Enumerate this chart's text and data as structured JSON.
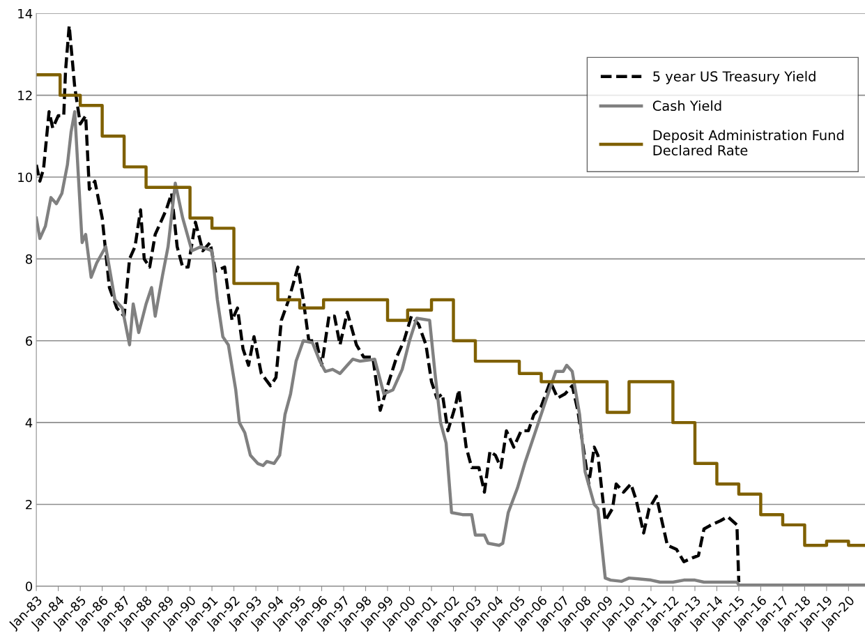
{
  "chart_data": {
    "type": "line",
    "xlim": [
      "1983-01",
      "2020-10"
    ],
    "ylim": [
      0,
      14
    ],
    "yticks": [
      0,
      2,
      4,
      6,
      8,
      10,
      12,
      14
    ],
    "xticks": [
      {
        "value": "1983-01",
        "label": "Jan-83"
      },
      {
        "value": "1984-01",
        "label": "Jan-84"
      },
      {
        "value": "1985-01",
        "label": "Jan-85"
      },
      {
        "value": "1986-01",
        "label": "Jan-86"
      },
      {
        "value": "1987-01",
        "label": "Jan-87"
      },
      {
        "value": "1988-01",
        "label": "Jan-88"
      },
      {
        "value": "1989-01",
        "label": "Jan-89"
      },
      {
        "value": "1990-01",
        "label": "Jan-90"
      },
      {
        "value": "1991-01",
        "label": "Jan-91"
      },
      {
        "value": "1992-01",
        "label": "Jan-92"
      },
      {
        "value": "1993-01",
        "label": "Jan-93"
      },
      {
        "value": "1994-01",
        "label": "Jan-94"
      },
      {
        "value": "1995-01",
        "label": "Jan-95"
      },
      {
        "value": "1996-01",
        "label": "Jan-96"
      },
      {
        "value": "1997-01",
        "label": "Jan-97"
      },
      {
        "value": "1998-01",
        "label": "Jan-98"
      },
      {
        "value": "1999-01",
        "label": "Jan-99"
      },
      {
        "value": "2000-01",
        "label": "Jan-00"
      },
      {
        "value": "2001-01",
        "label": "Jan-01"
      },
      {
        "value": "2002-01",
        "label": "Jan-02"
      },
      {
        "value": "2003-01",
        "label": "Jan-03"
      },
      {
        "value": "2004-01",
        "label": "Jan-04"
      },
      {
        "value": "2005-01",
        "label": "Jan-05"
      },
      {
        "value": "2006-01",
        "label": "Jan-06"
      },
      {
        "value": "2007-01",
        "label": "Jan-07"
      },
      {
        "value": "2008-01",
        "label": "Jan-08"
      },
      {
        "value": "2009-01",
        "label": "Jan-09"
      },
      {
        "value": "2010-01",
        "label": "Jan-10"
      },
      {
        "value": "2011-01",
        "label": "Jan-11"
      },
      {
        "value": "2012-01",
        "label": "Jan-12"
      },
      {
        "value": "2013-01",
        "label": "Jan-13"
      },
      {
        "value": "2014-01",
        "label": "Jan-14"
      },
      {
        "value": "2015-01",
        "label": "Jan-15"
      },
      {
        "value": "2016-01",
        "label": "Jan-16"
      },
      {
        "value": "2017-01",
        "label": "Jan-17"
      },
      {
        "value": "2018-01",
        "label": "Jan-18"
      },
      {
        "value": "2019-01",
        "label": "Jan-19"
      },
      {
        "value": "2020-01",
        "label": "Jan-20"
      }
    ],
    "grid": "y",
    "legend": "top right",
    "series": [
      {
        "name": "5 year US Treasury Yield",
        "type": "line",
        "color": "#000000",
        "line_style": "dashed",
        "x": [
          "1983-01",
          "1983-03",
          "1983-05",
          "1983-08",
          "1983-10",
          "1984-01",
          "1984-04",
          "1984-05",
          "1984-07",
          "1984-10",
          "1985-01",
          "1985-04",
          "1985-06",
          "1985-09",
          "1986-01",
          "1986-05",
          "1986-09",
          "1987-01",
          "1987-04",
          "1987-07",
          "1987-10",
          "1987-12",
          "1988-03",
          "1988-06",
          "1988-09",
          "1988-12",
          "1989-03",
          "1989-06",
          "1989-09",
          "1989-12",
          "1990-04",
          "1990-08",
          "1990-12",
          "1991-03",
          "1991-08",
          "1991-12",
          "1992-03",
          "1992-06",
          "1992-09",
          "1992-12",
          "1993-04",
          "1993-09",
          "1993-12",
          "1994-03",
          "1994-07",
          "1994-12",
          "1995-03",
          "1995-06",
          "1995-10",
          "1996-01",
          "1996-05",
          "1996-08",
          "1996-11",
          "1997-03",
          "1997-08",
          "1997-12",
          "1998-05",
          "1998-09",
          "1999-01",
          "1999-06",
          "1999-10",
          "2000-02",
          "2000-06",
          "2000-10",
          "2001-01",
          "2001-04",
          "2001-07",
          "2001-10",
          "2002-02",
          "2002-04",
          "2002-08",
          "2002-11",
          "2003-03",
          "2003-06",
          "2003-09",
          "2003-12",
          "2004-03",
          "2004-06",
          "2004-10",
          "2005-02",
          "2005-06",
          "2005-09",
          "2006-01",
          "2006-06",
          "2006-10",
          "2007-02",
          "2007-06",
          "2007-09",
          "2007-12",
          "2008-03",
          "2008-06",
          "2008-08",
          "2008-12",
          "2009-04",
          "2009-06",
          "2009-10",
          "2010-02",
          "2010-05",
          "2010-09",
          "2010-12",
          "2011-04",
          "2011-07",
          "2011-10",
          "2012-03",
          "2012-07",
          "2012-12",
          "2013-03",
          "2013-06",
          "2013-10",
          "2014-03",
          "2014-07",
          "2014-12",
          "2015-01"
        ],
        "values": [
          10.3,
          9.9,
          10.2,
          11.6,
          11.2,
          11.5,
          11.5,
          12.6,
          13.7,
          12.2,
          11.3,
          11.5,
          9.7,
          9.9,
          9.0,
          7.3,
          6.8,
          6.6,
          8.0,
          8.3,
          9.2,
          8.0,
          7.8,
          8.6,
          8.9,
          9.2,
          9.6,
          8.3,
          7.8,
          7.8,
          8.9,
          8.2,
          8.4,
          7.7,
          7.8,
          6.5,
          6.8,
          5.8,
          5.4,
          6.1,
          5.2,
          4.9,
          5.1,
          6.5,
          7.0,
          7.8,
          7.0,
          6.0,
          6.0,
          5.4,
          6.6,
          6.6,
          5.9,
          6.7,
          5.9,
          5.6,
          5.6,
          4.3,
          4.9,
          5.6,
          6.0,
          6.6,
          6.4,
          5.9,
          5.0,
          4.6,
          4.7,
          3.8,
          4.4,
          4.8,
          3.4,
          2.9,
          2.9,
          2.3,
          3.3,
          3.2,
          2.9,
          3.8,
          3.4,
          3.8,
          3.8,
          4.2,
          4.4,
          5.0,
          4.6,
          4.7,
          4.9,
          4.3,
          3.4,
          2.5,
          3.4,
          3.2,
          1.6,
          1.9,
          2.5,
          2.3,
          2.5,
          2.1,
          1.3,
          1.9,
          2.2,
          1.6,
          1.0,
          0.9,
          0.6,
          0.7,
          0.75,
          1.4,
          1.5,
          1.6,
          1.7,
          1.5,
          0.1
        ]
      },
      {
        "name": "Cash Yield",
        "type": "line",
        "color": "#808080",
        "line_style": "solid",
        "x": [
          "1983-01",
          "1983-03",
          "1983-06",
          "1983-09",
          "1983-12",
          "1984-03",
          "1984-06",
          "1984-08",
          "1984-10",
          "1985-02",
          "1985-04",
          "1985-07",
          "1985-10",
          "1986-03",
          "1986-08",
          "1986-12",
          "1987-04",
          "1987-06",
          "1987-09",
          "1988-01",
          "1988-04",
          "1988-06",
          "1988-10",
          "1989-01",
          "1989-05",
          "1989-09",
          "1990-02",
          "1990-07",
          "1991-01",
          "1991-04",
          "1991-07",
          "1991-10",
          "1992-02",
          "1992-04",
          "1992-07",
          "1992-10",
          "1993-02",
          "1993-05",
          "1993-07",
          "1993-11",
          "1994-02",
          "1994-05",
          "1994-08",
          "1994-11",
          "1995-03",
          "1995-08",
          "1995-12",
          "1996-03",
          "1996-07",
          "1996-11",
          "1997-03",
          "1997-06",
          "1997-10",
          "1998-06",
          "1998-11",
          "1999-04",
          "1999-09",
          "2000-01",
          "2000-05",
          "2000-12",
          "2001-03",
          "2001-06",
          "2001-09",
          "2001-12",
          "2002-06",
          "2002-11",
          "2003-01",
          "2003-06",
          "2003-08",
          "2004-02",
          "2004-04",
          "2004-07",
          "2004-12",
          "2005-04",
          "2005-10",
          "2006-04",
          "2006-09",
          "2007-01",
          "2007-03",
          "2007-06",
          "2007-10",
          "2008-01",
          "2008-06",
          "2008-08",
          "2008-12",
          "2009-03",
          "2009-09",
          "2010-01",
          "2010-06",
          "2011-01",
          "2011-06",
          "2012-01",
          "2012-07",
          "2013-01",
          "2013-06",
          "2014-01",
          "2014-06",
          "2014-12",
          "2015-01",
          "2020-10"
        ],
        "values": [
          9.0,
          8.5,
          8.8,
          9.5,
          9.35,
          9.6,
          10.3,
          11.1,
          11.6,
          8.4,
          8.6,
          7.55,
          7.9,
          8.3,
          7.0,
          6.8,
          5.9,
          6.9,
          6.2,
          6.9,
          7.3,
          6.6,
          7.6,
          8.3,
          9.85,
          9.0,
          8.2,
          8.3,
          8.2,
          7.0,
          6.1,
          5.9,
          4.8,
          4.0,
          3.75,
          3.2,
          3.0,
          2.95,
          3.05,
          3.0,
          3.2,
          4.2,
          4.7,
          5.5,
          6.0,
          5.95,
          5.5,
          5.25,
          5.3,
          5.2,
          5.4,
          5.55,
          5.5,
          5.55,
          4.7,
          4.8,
          5.3,
          6.0,
          6.55,
          6.5,
          5.2,
          4.0,
          3.5,
          1.8,
          1.75,
          1.75,
          1.25,
          1.25,
          1.05,
          1.0,
          1.05,
          1.8,
          2.4,
          3.0,
          3.8,
          4.6,
          5.25,
          5.25,
          5.4,
          5.25,
          4.2,
          2.8,
          2.0,
          1.9,
          0.2,
          0.15,
          0.12,
          0.2,
          0.18,
          0.15,
          0.1,
          0.1,
          0.15,
          0.15,
          0.1,
          0.1,
          0.1,
          0.1,
          0.03,
          0.03
        ]
      },
      {
        "name": "Deposit Administration Fund\nDeclared Rate",
        "type": "step",
        "color": "#7f6000",
        "line_style": "solid",
        "x": [
          "1983-01",
          "1984-02",
          "1985-01",
          "1986-01",
          "1987-01",
          "1988-01",
          "1990-01",
          "1991-01",
          "1992-01",
          "1994-01",
          "1995-01",
          "1996-02",
          "1999-01",
          "1999-12",
          "2001-01",
          "2002-01",
          "2003-01",
          "2005-01",
          "2006-01",
          "2009-01",
          "2010-01",
          "2012-01",
          "2013-01",
          "2014-01",
          "2015-01",
          "2016-01",
          "2017-01",
          "2018-01",
          "2019-01",
          "2020-01",
          "2020-10"
        ],
        "values": [
          12.5,
          12.0,
          11.75,
          11.0,
          10.25,
          9.75,
          9.0,
          8.75,
          7.4,
          7.0,
          6.8,
          7.0,
          6.5,
          6.75,
          7.0,
          6.0,
          5.5,
          5.2,
          5.0,
          4.25,
          5.0,
          4.0,
          3.0,
          2.5,
          2.25,
          1.75,
          1.5,
          1.0,
          1.1,
          1.0,
          1.0
        ]
      }
    ]
  }
}
